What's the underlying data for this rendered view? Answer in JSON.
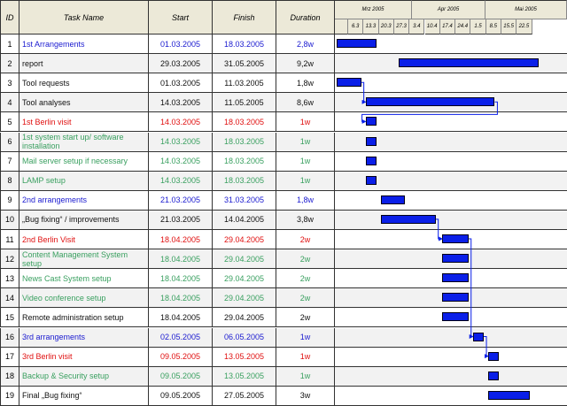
{
  "headers": {
    "id": "ID",
    "name": "Task Name",
    "start": "Start",
    "finish": "Finish",
    "duration": "Duration"
  },
  "timeline": {
    "months": [
      "Mrz 2005",
      "Apr 2005",
      "Mai 2005"
    ],
    "ticks": [
      "6.3",
      "13.3",
      "20.3",
      "27.3",
      "3.4",
      "10.4",
      "17.4",
      "24.4",
      "1.5",
      "8.5",
      "15.5",
      "22.5"
    ]
  },
  "tasks": [
    {
      "id": "1",
      "name": "1st Arrangements",
      "start": "01.03.2005",
      "finish": "18.03.2005",
      "duration": "2,8w",
      "name_color": "blue",
      "start_color": "blue",
      "finish_color": "blue",
      "dur_color": "blue",
      "bar_from": "2005-03-01",
      "bar_to": "2005-03-18"
    },
    {
      "id": "2",
      "name": "report",
      "start": "29.03.2005",
      "finish": "31.05.2005",
      "duration": "9,2w",
      "name_color": "black",
      "start_color": "black",
      "finish_color": "black",
      "dur_color": "black",
      "bar_from": "2005-03-29",
      "bar_to": "2005-05-31"
    },
    {
      "id": "3",
      "name": "Tool requests",
      "start": "01.03.2005",
      "finish": "11.03.2005",
      "duration": "1,8w",
      "name_color": "black",
      "start_color": "black",
      "finish_color": "black",
      "dur_color": "black",
      "bar_from": "2005-03-01",
      "bar_to": "2005-03-11"
    },
    {
      "id": "4",
      "name": "Tool analyses",
      "start": "14.03.2005",
      "finish": "11.05.2005",
      "duration": "8,6w",
      "name_color": "black",
      "start_color": "black",
      "finish_color": "black",
      "dur_color": "black",
      "bar_from": "2005-03-14",
      "bar_to": "2005-05-11"
    },
    {
      "id": "5",
      "name": "1st Berlin visit",
      "start": "14.03.2005",
      "finish": "18.03.2005",
      "duration": "1w",
      "name_color": "red",
      "start_color": "red",
      "finish_color": "red",
      "dur_color": "red",
      "bar_from": "2005-03-14",
      "bar_to": "2005-03-18"
    },
    {
      "id": "6",
      "name": "1st system start up/ software installation",
      "start": "14.03.2005",
      "finish": "18.03.2005",
      "duration": "1w",
      "name_color": "green",
      "start_color": "green",
      "finish_color": "green",
      "dur_color": "green",
      "bar_from": "2005-03-14",
      "bar_to": "2005-03-18"
    },
    {
      "id": "7",
      "name": "Mail server setup if necessary",
      "start": "14.03.2005",
      "finish": "18.03.2005",
      "duration": "1w",
      "name_color": "green",
      "start_color": "green",
      "finish_color": "green",
      "dur_color": "green",
      "bar_from": "2005-03-14",
      "bar_to": "2005-03-18"
    },
    {
      "id": "8",
      "name": "LAMP setup",
      "start": "14.03.2005",
      "finish": "18.03.2005",
      "duration": "1w",
      "name_color": "green",
      "start_color": "green",
      "finish_color": "green",
      "dur_color": "green",
      "bar_from": "2005-03-14",
      "bar_to": "2005-03-18"
    },
    {
      "id": "9",
      "name": "2nd arrangements",
      "start": "21.03.2005",
      "finish": "31.03.2005",
      "duration": "1,8w",
      "name_color": "blue",
      "start_color": "blue",
      "finish_color": "blue",
      "dur_color": "blue",
      "bar_from": "2005-03-21",
      "bar_to": "2005-03-31"
    },
    {
      "id": "10",
      "name": "„Bug fixing“ / improvements",
      "start": "21.03.2005",
      "finish": "14.04.2005",
      "duration": "3,8w",
      "name_color": "black",
      "start_color": "black",
      "finish_color": "black",
      "dur_color": "black",
      "bar_from": "2005-03-21",
      "bar_to": "2005-04-14"
    },
    {
      "id": "11",
      "name": "2nd Berlin Visit",
      "start": "18.04.2005",
      "finish": "29.04.2005",
      "duration": "2w",
      "name_color": "red",
      "start_color": "red",
      "finish_color": "red",
      "dur_color": "red",
      "bar_from": "2005-04-18",
      "bar_to": "2005-04-29"
    },
    {
      "id": "12",
      "name": "Content Management System setup",
      "start": "18.04.2005",
      "finish": "29.04.2005",
      "duration": "2w",
      "name_color": "green",
      "start_color": "green",
      "finish_color": "green",
      "dur_color": "green",
      "bar_from": "2005-04-18",
      "bar_to": "2005-04-29"
    },
    {
      "id": "13",
      "name": "News Cast System setup",
      "start": "18.04.2005",
      "finish": "29.04.2005",
      "duration": "2w",
      "name_color": "green",
      "start_color": "green",
      "finish_color": "green",
      "dur_color": "green",
      "bar_from": "2005-04-18",
      "bar_to": "2005-04-29"
    },
    {
      "id": "14",
      "name": "Video conference setup",
      "start": "18.04.2005",
      "finish": "29.04.2005",
      "duration": "2w",
      "name_color": "green",
      "start_color": "green",
      "finish_color": "green",
      "dur_color": "green",
      "bar_from": "2005-04-18",
      "bar_to": "2005-04-29"
    },
    {
      "id": "15",
      "name": "Remote administration setup",
      "start": "18.04.2005",
      "finish": "29.04.2005",
      "duration": "2w",
      "name_color": "black",
      "start_color": "black",
      "finish_color": "black",
      "dur_color": "black",
      "bar_from": "2005-04-18",
      "bar_to": "2005-04-29"
    },
    {
      "id": "16",
      "name": "3rd arrangements",
      "start": "02.05.2005",
      "finish": "06.05.2005",
      "duration": "1w",
      "name_color": "blue",
      "start_color": "blue",
      "finish_color": "blue",
      "dur_color": "blue",
      "bar_from": "2005-05-02",
      "bar_to": "2005-05-06"
    },
    {
      "id": "17",
      "name": "3rd Berlin visit",
      "start": "09.05.2005",
      "finish": "13.05.2005",
      "duration": "1w",
      "name_color": "red",
      "start_color": "red",
      "finish_color": "red",
      "dur_color": "red",
      "bar_from": "2005-05-09",
      "bar_to": "2005-05-13"
    },
    {
      "id": "18",
      "name": "Backup & Security setup",
      "start": "09.05.2005",
      "finish": "13.05.2005",
      "duration": "1w",
      "name_color": "green",
      "start_color": "green",
      "finish_color": "green",
      "dur_color": "green",
      "bar_from": "2005-05-09",
      "bar_to": "2005-05-13"
    },
    {
      "id": "19",
      "name": "Final „Bug fixing“",
      "start": "09.05.2005",
      "finish": "27.05.2005",
      "duration": "3w",
      "name_color": "black",
      "start_color": "black",
      "finish_color": "black",
      "dur_color": "black",
      "bar_from": "2005-05-09",
      "bar_to": "2005-05-27"
    }
  ],
  "dependencies": [
    [
      "3",
      "4"
    ],
    [
      "4",
      "5"
    ],
    [
      "10",
      "11"
    ],
    [
      "11",
      "16"
    ],
    [
      "16",
      "17"
    ]
  ],
  "colors": {
    "bar": "#0a1fe8",
    "header_bg": "#ece9d8",
    "row_alt": "#f2f2f2",
    "blue": "#1a1ad0",
    "red": "#e01010",
    "green": "#3aa060",
    "black": "#111111"
  }
}
